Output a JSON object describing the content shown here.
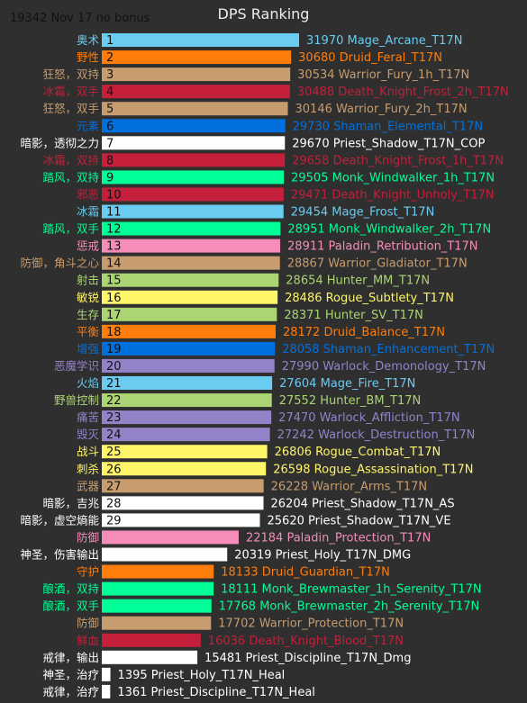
{
  "chart_data": {
    "type": "bar",
    "orientation": "horizontal",
    "title": "DPS Ranking",
    "subtitle": "19342 Nov 17 no bonus",
    "xlim": [
      0,
      32500
    ],
    "rows": [
      {
        "rank": "1",
        "cn": "奥术",
        "value": 31970,
        "spec": "Mage_Arcane_T17N",
        "color": "#69ccf0"
      },
      {
        "rank": "2",
        "cn": "野性",
        "value": 30680,
        "spec": "Druid_Feral_T17N",
        "color": "#ff7d0a"
      },
      {
        "rank": "3",
        "cn": "狂怒，双持",
        "value": 30534,
        "spec": "Warrior_Fury_1h_T17N",
        "color": "#c79c6e"
      },
      {
        "rank": "4",
        "cn": "冰霜，双手",
        "value": 30488,
        "spec": "Death_Knight_Frost_2h_T17N",
        "color": "#c41f3b"
      },
      {
        "rank": "5",
        "cn": "狂怒，双手",
        "value": 30146,
        "spec": "Warrior_Fury_2h_T17N",
        "color": "#c79c6e"
      },
      {
        "rank": "6",
        "cn": "元素",
        "value": 29730,
        "spec": "Shaman_Elemental_T17N",
        "color": "#0070de"
      },
      {
        "rank": "7",
        "cn": "暗影，透彻之力",
        "value": 29670,
        "spec": "Priest_Shadow_T17N_COP",
        "color": "#ffffff"
      },
      {
        "rank": "8",
        "cn": "冰霜，双持",
        "value": 29658,
        "spec": "Death_Knight_Frost_1h_T17N",
        "color": "#c41f3b"
      },
      {
        "rank": "9",
        "cn": "踏风，双持",
        "value": 29505,
        "spec": "Monk_Windwalker_1h_T17N",
        "color": "#00ff96"
      },
      {
        "rank": "10",
        "cn": "邪恶",
        "value": 29471,
        "spec": "Death_Knight_Unholy_T17N",
        "color": "#c41f3b"
      },
      {
        "rank": "11",
        "cn": "冰霜",
        "value": 29454,
        "spec": "Mage_Frost_T17N",
        "color": "#69ccf0"
      },
      {
        "rank": "12",
        "cn": "踏风，双手",
        "value": 28951,
        "spec": "Monk_Windwalker_2h_T17N",
        "color": "#00ff96"
      },
      {
        "rank": "13",
        "cn": "惩戒",
        "value": 28911,
        "spec": "Paladin_Retribution_T17N",
        "color": "#f58cba"
      },
      {
        "rank": "14",
        "cn": "防御，角斗之心",
        "value": 28867,
        "spec": "Warrior_Gladiator_T17N",
        "color": "#c79c6e"
      },
      {
        "rank": "15",
        "cn": "射击",
        "value": 28654,
        "spec": "Hunter_MM_T17N",
        "color": "#abd473"
      },
      {
        "rank": "16",
        "cn": "敏锐",
        "value": 28486,
        "spec": "Rogue_Subtlety_T17N",
        "color": "#fff569"
      },
      {
        "rank": "17",
        "cn": "生存",
        "value": 28371,
        "spec": "Hunter_SV_T17N",
        "color": "#abd473"
      },
      {
        "rank": "18",
        "cn": "平衡",
        "value": 28172,
        "spec": "Druid_Balance_T17N",
        "color": "#ff7d0a"
      },
      {
        "rank": "19",
        "cn": "增强",
        "value": 28058,
        "spec": "Shaman_Enhancement_T17N",
        "color": "#0070de"
      },
      {
        "rank": "20",
        "cn": "恶魔学识",
        "value": 27990,
        "spec": "Warlock_Demonology_T17N",
        "color": "#9482c9"
      },
      {
        "rank": "21",
        "cn": "火焰",
        "value": 27604,
        "spec": "Mage_Fire_T17N",
        "color": "#69ccf0"
      },
      {
        "rank": "22",
        "cn": "野兽控制",
        "value": 27552,
        "spec": "Hunter_BM_T17N",
        "color": "#abd473"
      },
      {
        "rank": "23",
        "cn": "痛苦",
        "value": 27470,
        "spec": "Warlock_Affliction_T17N",
        "color": "#9482c9"
      },
      {
        "rank": "24",
        "cn": "毁灭",
        "value": 27242,
        "spec": "Warlock_Destruction_T17N",
        "color": "#9482c9"
      },
      {
        "rank": "25",
        "cn": "战斗",
        "value": 26806,
        "spec": "Rogue_Combat_T17N",
        "color": "#fff569"
      },
      {
        "rank": "26",
        "cn": "刺杀",
        "value": 26598,
        "spec": "Rogue_Assassination_T17N",
        "color": "#fff569"
      },
      {
        "rank": "27",
        "cn": "武器",
        "value": 26228,
        "spec": "Warrior_Arms_T17N",
        "color": "#c79c6e"
      },
      {
        "rank": "28",
        "cn": "暗影，吉兆",
        "value": 26204,
        "spec": "Priest_Shadow_T17N_AS",
        "color": "#ffffff"
      },
      {
        "rank": "29",
        "cn": "暗影，虚空熵能",
        "value": 25620,
        "spec": "Priest_Shadow_T17N_VE",
        "color": "#ffffff"
      },
      {
        "rank": "",
        "cn": "防御",
        "value": 22184,
        "spec": "Paladin_Protection_T17N",
        "color": "#f58cba"
      },
      {
        "rank": "",
        "cn": "神圣，伤害输出",
        "value": 20319,
        "spec": "Priest_Holy_T17N_DMG",
        "color": "#ffffff"
      },
      {
        "rank": "",
        "cn": "守护",
        "value": 18133,
        "spec": "Druid_Guardian_T17N",
        "color": "#ff7d0a"
      },
      {
        "rank": "",
        "cn": "酿酒，双持",
        "value": 18111,
        "spec": "Monk_Brewmaster_1h_Serenity_T17N",
        "color": "#00ff96"
      },
      {
        "rank": "",
        "cn": "酿酒，双手",
        "value": 17768,
        "spec": "Monk_Brewmaster_2h_Serenity_T17N",
        "color": "#00ff96"
      },
      {
        "rank": "",
        "cn": "防御",
        "value": 17702,
        "spec": "Warrior_Protection_T17N",
        "color": "#c79c6e"
      },
      {
        "rank": "",
        "cn": "鲜血",
        "value": 16036,
        "spec": "Death_Knight_Blood_T17N",
        "color": "#c41f3b"
      },
      {
        "rank": "",
        "cn": "戒律，输出",
        "value": 15481,
        "spec": "Priest_Discipline_T17N_Dmg",
        "color": "#ffffff"
      },
      {
        "rank": "",
        "cn": "神圣，治疗",
        "value": 1395,
        "spec": "Priest_Holy_T17N_Heal",
        "color": "#ffffff"
      },
      {
        "rank": "",
        "cn": "戒律，治疗",
        "value": 1361,
        "spec": "Priest_Discipline_T17N_Heal",
        "color": "#ffffff"
      }
    ]
  }
}
